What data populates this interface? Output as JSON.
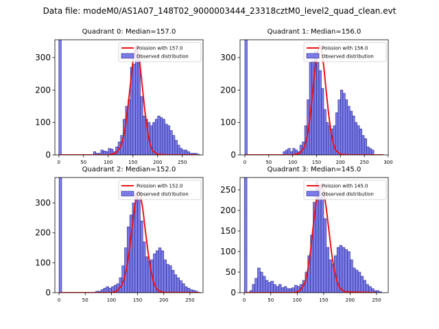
{
  "figure": {
    "suptitle": "Data file: modeM0/AS1A07_148T02_9000003444_23318cztM0_level2_quad_clean.evt",
    "colors": {
      "bar_fill": "#7b7be8",
      "bar_edge": "#26268a",
      "line": "#ee1111"
    }
  },
  "chart_data": [
    {
      "type": "bar",
      "title": "Quadrant 0: Median=157.0",
      "legend": {
        "placement": "top-right",
        "line_label": "Poission with 157.0",
        "bar_label": "Observed distribution"
      },
      "xlim": [
        -8,
        292
      ],
      "ylim": [
        0,
        355
      ],
      "xticks": [
        0,
        50,
        100,
        150,
        200,
        250
      ],
      "yticks": [
        0,
        100,
        200,
        300
      ],
      "bins": {
        "x": [
          0,
          70,
          75,
          80,
          85,
          90,
          95,
          100,
          105,
          110,
          115,
          120,
          125,
          130,
          135,
          140,
          145,
          150,
          155,
          160,
          165,
          170,
          175,
          180,
          185,
          190,
          195,
          200,
          205,
          210,
          215,
          220,
          225,
          230,
          235,
          240,
          245,
          250,
          255,
          260,
          265,
          270,
          275,
          280
        ],
        "width": 5,
        "counts": [
          365,
          10,
          5,
          5,
          15,
          12,
          10,
          20,
          18,
          10,
          25,
          40,
          60,
          110,
          150,
          170,
          270,
          280,
          325,
          290,
          180,
          120,
          110,
          100,
          90,
          100,
          110,
          120,
          115,
          110,
          95,
          90,
          75,
          60,
          45,
          30,
          20,
          15,
          15,
          10,
          5,
          5,
          5,
          2
        ]
      },
      "poisson": {
        "x": [
          0,
          100,
          115,
          125,
          130,
          135,
          140,
          145,
          150,
          155,
          157,
          160,
          165,
          170,
          175,
          180,
          185,
          190,
          200,
          220,
          280
        ],
        "y": [
          0,
          0,
          5,
          25,
          50,
          90,
          150,
          220,
          290,
          330,
          335,
          320,
          270,
          195,
          125,
          70,
          32,
          12,
          2,
          0,
          0
        ]
      }
    },
    {
      "type": "bar",
      "title": "Quadrant 1: Median=156.0",
      "legend": {
        "placement": "top-right",
        "line_label": "Poission with 156.0",
        "bar_label": "Observed distribution"
      },
      "xlim": [
        -10,
        300
      ],
      "ylim": [
        0,
        355
      ],
      "xticks": [
        0,
        50,
        100,
        150,
        200,
        250,
        300
      ],
      "yticks": [
        0,
        100,
        200,
        300
      ],
      "bins": {
        "x": [
          0,
          80,
          85,
          90,
          95,
          100,
          105,
          110,
          115,
          120,
          125,
          130,
          135,
          140,
          145,
          150,
          155,
          160,
          165,
          170,
          175,
          180,
          185,
          190,
          195,
          200,
          205,
          210,
          215,
          220,
          225,
          230,
          235,
          240,
          245,
          250,
          255,
          260,
          265
        ],
        "width": 5,
        "counts": [
          365,
          10,
          15,
          20,
          10,
          20,
          15,
          10,
          30,
          40,
          90,
          170,
          285,
          290,
          320,
          285,
          260,
          205,
          140,
          100,
          90,
          80,
          90,
          130,
          170,
          200,
          190,
          170,
          150,
          135,
          120,
          100,
          90,
          80,
          60,
          50,
          25,
          20,
          15
        ]
      },
      "poisson": {
        "x": [
          0,
          100,
          115,
          125,
          130,
          135,
          140,
          145,
          150,
          155,
          156,
          160,
          165,
          170,
          175,
          180,
          185,
          190,
          200,
          220,
          290
        ],
        "y": [
          0,
          0,
          5,
          25,
          55,
          100,
          165,
          240,
          300,
          335,
          338,
          325,
          275,
          200,
          130,
          72,
          35,
          14,
          2,
          0,
          0
        ]
      }
    },
    {
      "type": "bar",
      "title": "Quadrant 2: Median=152.0",
      "legend": {
        "placement": "top-right",
        "line_label": "Poission with 152.0",
        "bar_label": "Observed distribution"
      },
      "xlim": [
        -8,
        275
      ],
      "ylim": [
        0,
        385
      ],
      "xticks": [
        0,
        50,
        100,
        150,
        200,
        250
      ],
      "yticks": [
        0,
        100,
        200,
        300
      ],
      "bins": {
        "x": [
          0,
          70,
          75,
          80,
          85,
          90,
          95,
          100,
          105,
          110,
          115,
          120,
          125,
          130,
          135,
          140,
          145,
          150,
          155,
          160,
          165,
          170,
          175,
          180,
          185,
          190,
          195,
          200,
          205,
          210,
          215,
          220,
          225,
          230,
          235,
          240,
          245,
          250,
          255,
          260
        ],
        "width": 5,
        "counts": [
          385,
          5,
          5,
          10,
          15,
          20,
          15,
          20,
          25,
          30,
          50,
          90,
          150,
          220,
          260,
          300,
          330,
          315,
          240,
          170,
          120,
          105,
          110,
          130,
          140,
          150,
          140,
          110,
          95,
          90,
          75,
          60,
          50,
          40,
          30,
          20,
          15,
          10,
          8,
          5
        ]
      },
      "poisson": {
        "x": [
          0,
          100,
          110,
          120,
          125,
          130,
          135,
          140,
          145,
          150,
          152,
          155,
          160,
          165,
          170,
          175,
          180,
          185,
          190,
          200,
          270
        ],
        "y": [
          0,
          0,
          5,
          25,
          50,
          90,
          150,
          225,
          295,
          335,
          340,
          330,
          280,
          205,
          135,
          78,
          38,
          16,
          6,
          1,
          0
        ]
      }
    },
    {
      "type": "bar",
      "title": "Quadrant 3: Median=145.0",
      "legend": {
        "placement": "top-right",
        "line_label": "Poission with 145.0",
        "bar_label": "Observed distribution"
      },
      "xlim": [
        -8,
        272
      ],
      "ylim": [
        0,
        280
      ],
      "xticks": [
        0,
        50,
        100,
        150,
        200,
        250
      ],
      "yticks": [
        0,
        50,
        100,
        150,
        200,
        250
      ],
      "bins": {
        "x": [
          0,
          10,
          15,
          20,
          25,
          30,
          35,
          40,
          45,
          50,
          55,
          60,
          65,
          70,
          75,
          80,
          85,
          90,
          95,
          100,
          105,
          110,
          115,
          120,
          125,
          130,
          135,
          140,
          145,
          150,
          155,
          160,
          165,
          170,
          175,
          180,
          185,
          190,
          195,
          200,
          205,
          210,
          215,
          220,
          225,
          230,
          235,
          240,
          245,
          250,
          255
        ],
        "width": 5,
        "counts": [
          280,
          5,
          20,
          35,
          60,
          50,
          40,
          30,
          25,
          28,
          20,
          15,
          20,
          12,
          15,
          10,
          10,
          12,
          18,
          15,
          20,
          30,
          50,
          90,
          140,
          220,
          270,
          260,
          240,
          180,
          110,
          80,
          70,
          90,
          110,
          115,
          110,
          105,
          100,
          80,
          60,
          55,
          50,
          40,
          30,
          20,
          15,
          10,
          5,
          5,
          2
        ]
      },
      "poisson": {
        "x": [
          0,
          95,
          105,
          115,
          120,
          125,
          130,
          135,
          140,
          145,
          150,
          155,
          160,
          165,
          170,
          175,
          180,
          190,
          250
        ],
        "y": [
          0,
          0,
          5,
          25,
          55,
          100,
          160,
          215,
          250,
          262,
          248,
          205,
          150,
          95,
          55,
          28,
          12,
          2,
          0
        ]
      }
    }
  ]
}
